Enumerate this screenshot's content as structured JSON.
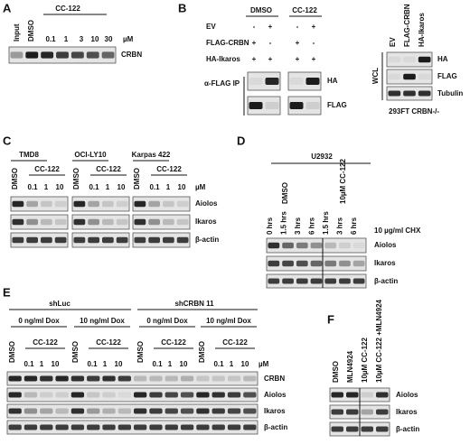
{
  "panel_a": {
    "letter": "A",
    "drug": "CC-122",
    "lanes": [
      "Input",
      "DMSO",
      "0.1",
      "1",
      "3",
      "10",
      "30"
    ],
    "unit": "µM",
    "blots": [
      "CRBN"
    ]
  },
  "panel_b": {
    "letter": "B",
    "col_headers": [
      "DMSO",
      "CC-122"
    ],
    "rows": [
      {
        "label": "EV",
        "signs": [
          "-",
          "+",
          "-",
          "+"
        ]
      },
      {
        "label": "FLAG-CRBN",
        "signs": [
          "+",
          "-",
          "+",
          "-"
        ]
      },
      {
        "label": "HA-Ikaros",
        "signs": [
          "+",
          "+",
          "+",
          "+"
        ]
      }
    ],
    "ip_label": "α-FLAG IP",
    "blots": [
      "HA",
      "FLAG"
    ],
    "wcl": {
      "label": "WCL",
      "lanes": [
        "EV",
        "FLAG-CRBN",
        "HA-Ikaros"
      ],
      "blots": [
        "HA",
        "FLAG",
        "Tubulin"
      ],
      "caption": "293FT CRBN-/-"
    }
  },
  "panel_c": {
    "letter": "C",
    "cell_lines": [
      "TMD8",
      "OCI-LY10",
      "Karpas 422"
    ],
    "control": "DMSO",
    "drug": "CC-122",
    "doses": [
      "0.1",
      "1",
      "10"
    ],
    "unit": "µM",
    "blots": [
      "Aiolos",
      "Ikaros",
      "β-actin"
    ]
  },
  "panel_d": {
    "letter": "D",
    "cell_line": "U2932",
    "groups": [
      "DMSO",
      "10µM CC-122"
    ],
    "times": [
      "0 hrs",
      "1.5 hrs",
      "3 hrs",
      "6 hrs",
      "1.5 hrs",
      "3 hrs",
      "6 hrs"
    ],
    "note": "10 µg/ml CHX",
    "blots": [
      "Aiolos",
      "Ikaros",
      "β-actin"
    ]
  },
  "panel_e": {
    "letter": "E",
    "groups": [
      "shLuc",
      "shCRBN 11"
    ],
    "dox": [
      "0 ng/ml Dox",
      "10 ng/ml Dox"
    ],
    "control": "DMSO",
    "drug": "CC-122",
    "doses": [
      "0.1",
      "1",
      "10"
    ],
    "unit": "µM",
    "blots": [
      "CRBN",
      "Aiolos",
      "Ikaros",
      "β-actin"
    ]
  },
  "panel_f": {
    "letter": "F",
    "lanes": [
      "DMSO",
      "MLN4924",
      "10µM CC-122",
      "10µM CC-122 +MLN4924"
    ],
    "blots": [
      "Aiolos",
      "Ikaros",
      "β-actin"
    ]
  }
}
